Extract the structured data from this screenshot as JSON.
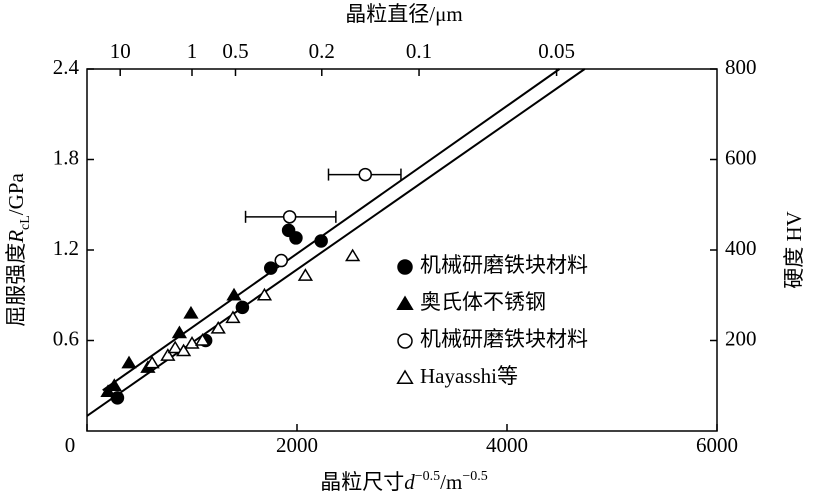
{
  "chart_data": {
    "type": "scatter",
    "title": "晶粒直径/μm",
    "xlabel": [
      "晶粒尺寸",
      "d",
      "−0.5",
      "/m",
      "−0.5"
    ],
    "ylabel": [
      "屈服强度",
      "R",
      "cL",
      "/GPa"
    ],
    "y2label": "硬度 HV",
    "xlim": [
      0,
      6000
    ],
    "xticks": [
      0,
      2000,
      4000,
      6000
    ],
    "ylim": [
      0,
      2.4
    ],
    "yticks": [
      0.6,
      1.2,
      1.8,
      2.4
    ],
    "y2lim": [
      0,
      800
    ],
    "y2ticks": [
      200,
      400,
      600,
      800
    ],
    "x2ticks": [
      10,
      1,
      0.5,
      0.2,
      0.1,
      0.05
    ],
    "series": [
      {
        "name": "机械研磨铁块材料",
        "marker": "filled-circle",
        "color": "#000000",
        "x": [
          290,
          1130,
          1480,
          1750,
          1920,
          1990,
          2230
        ],
        "values": [
          0.22,
          0.6,
          0.82,
          1.08,
          1.33,
          1.28,
          1.26
        ]
      },
      {
        "name": "奥氏体不锈钢",
        "marker": "filled-triangle",
        "color": "#000000",
        "x": [
          200,
          260,
          400,
          580,
          880,
          990,
          1400
        ],
        "values": [
          0.26,
          0.3,
          0.45,
          0.42,
          0.65,
          0.78,
          0.9
        ]
      },
      {
        "name": "机械研磨铁块材料",
        "marker": "open-circle",
        "color": "#000000",
        "x": [
          1850,
          1930,
          2650
        ],
        "values": [
          1.13,
          1.42,
          1.7
        ],
        "xerr_minus": [
          null,
          420,
          350
        ],
        "xerr_plus": [
          null,
          440,
          340
        ]
      },
      {
        "name": "Hayasshi等",
        "marker": "open-triangle",
        "color": "#000000",
        "x": [
          620,
          770,
          840,
          920,
          1000,
          1100,
          1250,
          1390,
          1690,
          2080,
          2530
        ],
        "values": [
          0.45,
          0.5,
          0.55,
          0.53,
          0.58,
          0.6,
          0.68,
          0.75,
          0.9,
          1.03,
          1.16
        ]
      }
    ],
    "lines": [
      {
        "x": [
          150,
          4500
        ],
        "values": [
          0.27,
          2.4
        ]
      },
      {
        "x": [
          0,
          4740
        ],
        "values": [
          0.1,
          2.4
        ]
      }
    ]
  }
}
